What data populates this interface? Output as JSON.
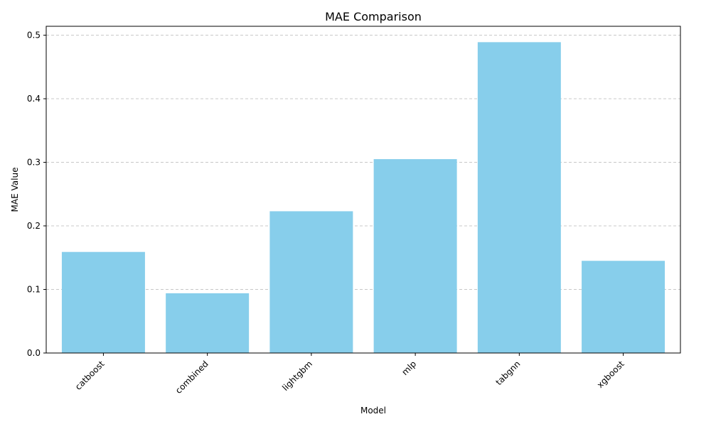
{
  "chart_data": {
    "type": "bar",
    "title": "MAE Comparison",
    "xlabel": "Model",
    "ylabel": "MAE Value",
    "categories": [
      "catboost",
      "combined",
      "lightgbm",
      "mlp",
      "tabgnn",
      "xgboost"
    ],
    "values": [
      0.159,
      0.094,
      0.223,
      0.305,
      0.489,
      0.145
    ],
    "ylim": [
      0,
      0.514
    ],
    "yticks": [
      "0.0",
      "0.1",
      "0.2",
      "0.3",
      "0.4",
      "0.5"
    ],
    "grid": "y-dashed",
    "bar_color": "#87ceeb",
    "grid_color": "#c8c8c8"
  }
}
